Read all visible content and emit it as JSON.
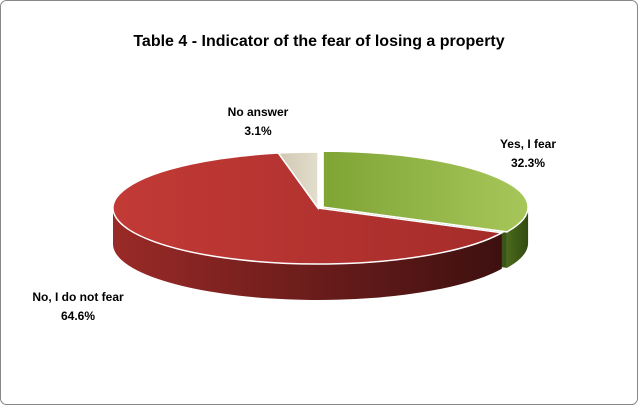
{
  "chart_data": {
    "type": "pie",
    "title": "Table 4 - Indicator of the fear of losing a property",
    "categories": [
      "Yes, I fear",
      "No, I do not fear",
      "No answer"
    ],
    "values": [
      32.3,
      64.6,
      3.1
    ],
    "value_labels": [
      "32.3%",
      "64.6%",
      "3.1%"
    ],
    "colors": [
      "#8db53f",
      "#b83431",
      "#d9d2be"
    ]
  }
}
